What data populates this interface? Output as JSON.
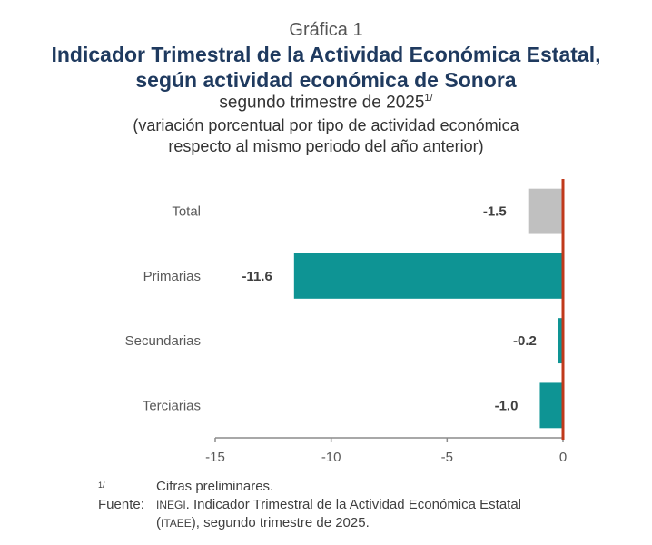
{
  "header": {
    "chart_number": "Gráfica 1",
    "title_line1": "Indicador Trimestral de la Actividad Económica Estatal,",
    "title_line2": "según actividad económica de Sonora",
    "subtitle": "segundo trimestre de 2025",
    "subtitle_sup": "1/",
    "note_line1": "(variación porcentual por tipo de actividad económica",
    "note_line2": "respecto al mismo periodo del año anterior)"
  },
  "chart_data": {
    "type": "bar",
    "orientation": "horizontal",
    "title": "Indicador Trimestral de la Actividad Económica Estatal, según actividad económica de Sonora",
    "subtitle": "segundo trimestre de 2025",
    "categories": [
      "Total",
      "Primarias",
      "Secundarias",
      "Terciarias"
    ],
    "values": [
      -1.5,
      -11.6,
      -0.2,
      -1.0
    ],
    "value_labels": [
      "-1.5",
      "-11.6",
      "-0.2",
      "-1.0"
    ],
    "bar_colors": [
      "#c0c0c0",
      "#0e9494",
      "#0e9494",
      "#0e9494"
    ],
    "zero_line_color": "#c0391b",
    "xlabel": "",
    "ylabel": "",
    "xlim": [
      -15,
      0
    ],
    "xticks": [
      -15,
      -10,
      -5,
      0
    ],
    "xtick_labels": [
      "-15",
      "-10",
      "-5",
      "0"
    ],
    "grid": false,
    "legend": "none"
  },
  "footnotes": {
    "note_key": "1/",
    "note_text": "Cifras preliminares.",
    "source_key": "Fuente:",
    "source_org": "INEGI",
    "source_line1_rest": ". Indicador Trimestral de la Actividad Económica Estatal",
    "source_line2_open": "(",
    "source_abbr": "ITAEE",
    "source_line2_rest": "), segundo trimestre de 2025."
  }
}
